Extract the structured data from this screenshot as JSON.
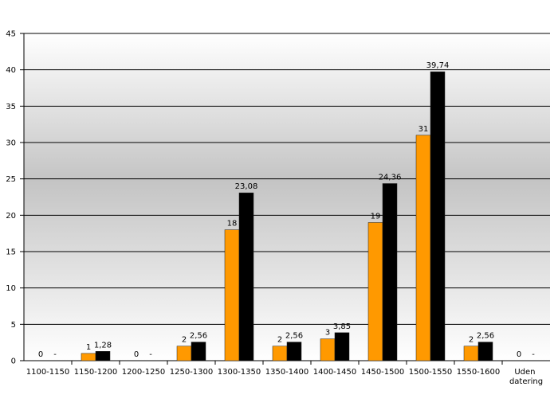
{
  "chart_data": {
    "type": "bar",
    "categories": [
      "1100-1150",
      "1150-1200",
      "1200-1250",
      "1250-1300",
      "1300-1350",
      "1350-1400",
      "1400-1450",
      "1450-1500",
      "1500-1550",
      "1550-1600",
      "Uden datering"
    ],
    "series": [
      {
        "color": "#ff9900",
        "values": [
          0,
          1,
          0,
          2,
          18,
          2,
          3,
          19,
          31,
          2,
          0
        ]
      },
      {
        "color": "#000000",
        "values": [
          0,
          1.28,
          0,
          2.56,
          23.08,
          2.56,
          3.85,
          24.36,
          39.74,
          2.56,
          0
        ],
        "value_labels": [
          "-",
          "1,28",
          "-",
          "2,56",
          "23,08",
          "2,56",
          "3,85",
          "24,36",
          "39,74",
          "2,56",
          "-"
        ]
      }
    ],
    "ylim": [
      0,
      45
    ],
    "yticks": [
      0,
      5,
      10,
      15,
      20,
      25,
      30,
      35,
      40,
      45
    ],
    "grid": true
  }
}
